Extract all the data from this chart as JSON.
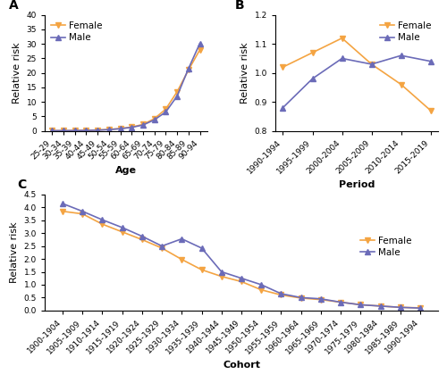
{
  "panel_A": {
    "title": "A",
    "xlabel": "Age",
    "ylabel": "Relative risk",
    "xlabels": [
      "25-29",
      "30-34",
      "35-39",
      "40-44",
      "45-49",
      "50-54",
      "55-59",
      "60-64",
      "65-69",
      "70-74",
      "75-79",
      "80-84",
      "85-89",
      "90-94"
    ],
    "female": [
      0.08,
      0.08,
      0.12,
      0.18,
      0.28,
      0.48,
      0.8,
      1.3,
      2.2,
      4.2,
      7.5,
      13.5,
      21.0,
      28.0
    ],
    "male": [
      0.05,
      0.06,
      0.09,
      0.13,
      0.22,
      0.42,
      0.72,
      1.2,
      2.0,
      3.8,
      6.5,
      12.0,
      21.5,
      30.2
    ],
    "ylim": [
      0,
      40
    ],
    "yticks": [
      0,
      5,
      10,
      15,
      20,
      25,
      30,
      35,
      40
    ],
    "female_color": "#F4A442",
    "male_color": "#6B6BB8"
  },
  "panel_B": {
    "title": "B",
    "xlabel": "Period",
    "ylabel": "Relative risk",
    "xlabels": [
      "1990-1994",
      "1995-1999",
      "2000-2004",
      "2005-2009",
      "2010-2014",
      "2015-2019"
    ],
    "female": [
      1.02,
      1.07,
      1.12,
      1.03,
      0.96,
      0.87
    ],
    "male": [
      0.88,
      0.98,
      1.05,
      1.03,
      1.06,
      1.04
    ],
    "ylim": [
      0.8,
      1.2
    ],
    "yticks": [
      0.8,
      0.9,
      1.0,
      1.1,
      1.2
    ],
    "female_color": "#F4A442",
    "male_color": "#6B6BB8"
  },
  "panel_C": {
    "title": "C",
    "xlabel": "Cohort",
    "ylabel": "Relative risk",
    "xlabels": [
      "1900-1904",
      "1905-1909",
      "1910-1914",
      "1915-1919",
      "1920-1924",
      "1925-1929",
      "1930-1934",
      "1935-1939",
      "1940-1944",
      "1945-1949",
      "1950-1954",
      "1955-1959",
      "1960-1964",
      "1965-1969",
      "1970-1974",
      "1975-1979",
      "1980-1984",
      "1985-1989",
      "1990-1994"
    ],
    "female": [
      3.85,
      3.75,
      3.35,
      3.05,
      2.75,
      2.42,
      1.98,
      1.58,
      1.32,
      1.12,
      0.8,
      0.6,
      0.48,
      0.42,
      0.32,
      0.22,
      0.17,
      0.12,
      0.1
    ],
    "male": [
      4.15,
      3.85,
      3.52,
      3.22,
      2.88,
      2.5,
      2.78,
      2.42,
      1.5,
      1.25,
      1.0,
      0.65,
      0.5,
      0.45,
      0.32,
      0.22,
      0.17,
      0.12,
      0.09
    ],
    "ylim": [
      0,
      4.5
    ],
    "yticks": [
      0.0,
      0.5,
      1.0,
      1.5,
      2.0,
      2.5,
      3.0,
      3.5,
      4.0,
      4.5
    ],
    "female_color": "#F4A442",
    "male_color": "#6B6BB8"
  },
  "female_color": "#F4A442",
  "male_color": "#6B6BB8",
  "marker_female": "v",
  "marker_male": "^",
  "markersize": 4,
  "linewidth": 1.2,
  "fontsize_label": 8,
  "fontsize_tick": 6.5,
  "fontsize_legend": 7.5,
  "fontsize_panel": 10
}
